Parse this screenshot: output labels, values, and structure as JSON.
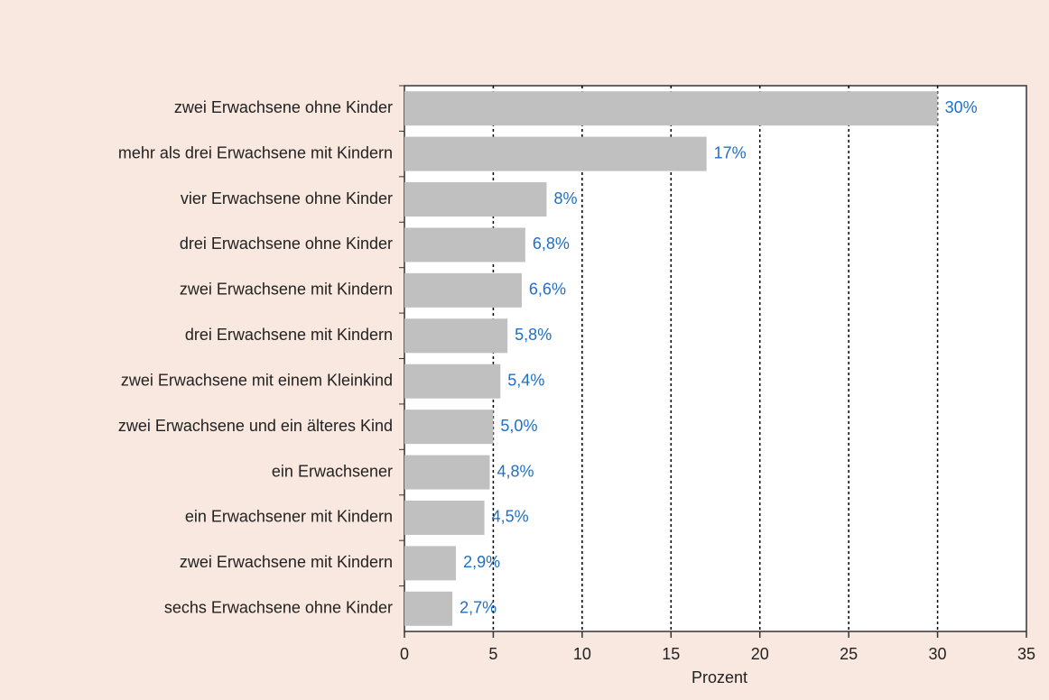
{
  "chart_data": {
    "type": "bar",
    "orientation": "horizontal",
    "categories": [
      "zwei Erwachsene ohne Kinder",
      "mehr als drei Erwachsene mit Kindern",
      "vier Erwachsene ohne Kinder",
      "drei Erwachsene ohne Kinder",
      "zwei Erwachsene mit Kindern",
      "drei Erwachsene mit Kindern",
      "zwei Erwachsene mit einem Kleinkind",
      "zwei Erwachsene und ein älteres Kind",
      "ein Erwachsener",
      "ein Erwachsener mit Kindern",
      "zwei Erwachsene mit Kindern",
      "sechs Erwachsene ohne Kinder"
    ],
    "values": [
      30,
      17,
      8,
      6.8,
      6.6,
      5.8,
      5.4,
      5.0,
      4.8,
      4.5,
      2.9,
      2.7
    ],
    "value_labels": [
      "30%",
      "17%",
      "8%",
      "6,8%",
      "6,6%",
      "5,8%",
      "5,4%",
      "5,0%",
      "4,8%",
      "4,5%",
      "2,9%",
      "2,7%"
    ],
    "color": "#c0c0c0",
    "label_color": "#1f6fc5",
    "xlabel": "Prozent",
    "xlim": [
      0,
      35
    ],
    "xticks": [
      0,
      5,
      10,
      15,
      20,
      25,
      30,
      35
    ],
    "grid": true
  }
}
